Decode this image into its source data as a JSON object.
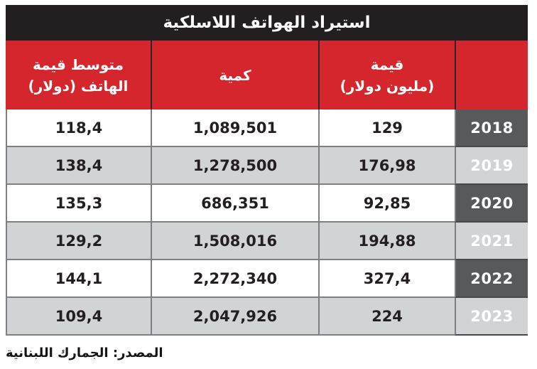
{
  "page": {
    "title": "استيراد الهواتف اللاسلكية",
    "source": "المصدر: الجمارك اللبنانية"
  },
  "table": {
    "headers": {
      "year": "",
      "value_line1": "قيمة",
      "value_line2": "(مليون دولار)",
      "quantity": "كمية",
      "avg_line1": "متوسط قيمة",
      "avg_line2": "الهاتف (دولار)"
    },
    "rows": [
      {
        "year": "2018",
        "value": "129",
        "quantity": "1,089,501",
        "avg": "118,4"
      },
      {
        "year": "2019",
        "value": "176,98",
        "quantity": "1,278,500",
        "avg": "138,4"
      },
      {
        "year": "2020",
        "value": "92,85",
        "quantity": "686,351",
        "avg": "135,3"
      },
      {
        "year": "2021",
        "value": "194,88",
        "quantity": "1,508,016",
        "avg": "129,2"
      },
      {
        "year": "2022",
        "value": "327,4",
        "quantity": "2,272,340",
        "avg": "144,1"
      },
      {
        "year": "2023",
        "value": "224",
        "quantity": "2,047,926",
        "avg": "109,4"
      }
    ]
  },
  "colors": {
    "title_bar_black": "#231f20",
    "header_red": "#d6262d",
    "year_column_gray": "#58595b",
    "alt_row_gray": "#d2d3d5",
    "grid_line_gray": "#7d7f82",
    "text_dark": "#231f20",
    "text_white": "#ffffff"
  },
  "chart_data": {
    "type": "table",
    "title": "استيراد الهواتف اللاسلكية",
    "categories": [
      "2018",
      "2019",
      "2020",
      "2021",
      "2022",
      "2023"
    ],
    "series": [
      {
        "name": "قيمة (مليون دولار)",
        "values": [
          129,
          176.98,
          92.85,
          194.88,
          327.4,
          224
        ]
      },
      {
        "name": "كمية",
        "values": [
          1089501,
          1278500,
          686351,
          1508016,
          2272340,
          2047926
        ]
      },
      {
        "name": "متوسط قيمة الهاتف (دولار)",
        "values": [
          118.4,
          138.4,
          135.3,
          129.2,
          144.1,
          109.4
        ]
      }
    ],
    "source": "المصدر: الجمارك اللبنانية",
    "layout": {
      "direction": "rtl",
      "row_striping": true,
      "year_column_side": "right"
    }
  }
}
